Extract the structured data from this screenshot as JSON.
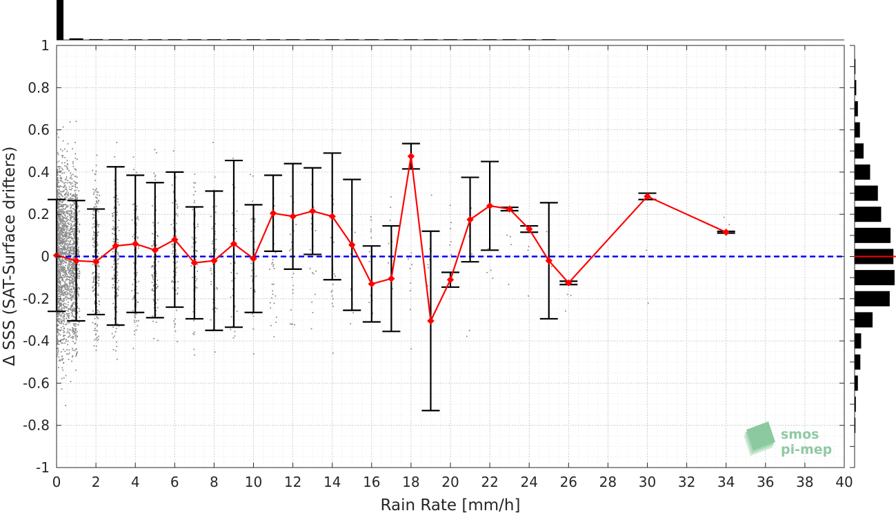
{
  "chart_data": {
    "type": "scatter",
    "xlabel": "Rain Rate [mm/h]",
    "ylabel": "Δ SSS (SAT-Surface drifters)",
    "xlim": [
      0,
      40
    ],
    "ylim": [
      -1,
      1
    ],
    "xticks": [
      0,
      2,
      4,
      6,
      8,
      10,
      12,
      14,
      16,
      18,
      20,
      22,
      24,
      26,
      28,
      30,
      32,
      34,
      36,
      38,
      40
    ],
    "yticks": [
      -1,
      -0.8,
      -0.6,
      -0.4,
      -0.2,
      0,
      0.2,
      0.4,
      0.6,
      0.8,
      1
    ],
    "ytick_labels": [
      "-1",
      "-0.8",
      "-0.6",
      "-0.4",
      "-0.2",
      "0",
      "0.2",
      "0.4",
      "0.6",
      "0.8",
      "1"
    ],
    "grid": true,
    "reference_line": {
      "y": 0,
      "color": "#0000ff",
      "style": "dashed"
    },
    "series": [
      {
        "kind": "binned_mean_with_std",
        "color": "#ff0000",
        "x": [
          0,
          1,
          2,
          3,
          4,
          5,
          6,
          7,
          8,
          9,
          10,
          11,
          12,
          13,
          14,
          15,
          16,
          17,
          18,
          19,
          20,
          21,
          22,
          23,
          24,
          25,
          26,
          30,
          34
        ],
        "mean": [
          0.005,
          -0.02,
          -0.025,
          0.05,
          0.06,
          0.03,
          0.08,
          -0.03,
          -0.02,
          0.06,
          -0.01,
          0.205,
          0.19,
          0.215,
          0.19,
          0.055,
          -0.13,
          -0.105,
          0.475,
          -0.305,
          -0.11,
          0.175,
          0.24,
          0.225,
          0.13,
          -0.02,
          -0.125,
          0.285,
          0.115
        ],
        "std": [
          0.265,
          0.285,
          0.25,
          0.375,
          0.325,
          0.32,
          0.32,
          0.265,
          0.33,
          0.395,
          0.255,
          0.18,
          0.25,
          0.205,
          0.3,
          0.31,
          0.18,
          0.25,
          0.06,
          0.425,
          0.035,
          0.2,
          0.21,
          0.008,
          0.015,
          0.275,
          0.008,
          0.015,
          0.004
        ]
      },
      {
        "kind": "raw_points",
        "color": "#8c8c8c",
        "note": "dense cloud of individual match-ups",
        "density_per_x_bin": [
          1800,
          420,
          300,
          200,
          140,
          110,
          90,
          75,
          60,
          50,
          40,
          30,
          28,
          22,
          18,
          15,
          12,
          10,
          8,
          8,
          6,
          6,
          5,
          4,
          4,
          4,
          3,
          0,
          0,
          0,
          2,
          0,
          0,
          0,
          2,
          0,
          0,
          0,
          0,
          0
        ]
      }
    ],
    "histogram_x": {
      "bins": [
        0,
        1,
        2,
        3,
        4,
        5,
        6,
        7,
        8,
        9,
        10,
        11,
        12,
        13,
        14,
        15,
        16,
        17,
        18,
        19,
        20,
        21,
        22,
        23,
        24,
        25
      ],
      "counts": [
        100,
        4,
        2,
        1.5,
        1.2,
        1,
        0.8,
        0.7,
        0.6,
        0.5,
        0.5,
        0.4,
        0.4,
        0.3,
        0.3,
        0.3,
        0.2,
        0.2,
        0.2,
        0.2,
        0.2,
        0.2,
        0.2,
        0.2,
        0.2,
        0.2
      ]
    },
    "histogram_y": {
      "bin_centers": [
        -0.8,
        -0.7,
        -0.6,
        -0.5,
        -0.4,
        -0.3,
        -0.2,
        -0.1,
        0.0,
        0.1,
        0.2,
        0.3,
        0.4,
        0.5,
        0.6,
        0.7,
        0.8,
        0.9
      ],
      "counts": [
        2,
        3,
        8,
        14,
        16,
        44,
        86,
        98,
        95,
        88,
        65,
        57,
        38,
        22,
        13,
        8,
        4,
        2
      ],
      "mean_marker": {
        "y": 0,
        "color": "#ff0000"
      }
    }
  },
  "logo": {
    "line1": "smos",
    "line2": "pi-mep"
  }
}
